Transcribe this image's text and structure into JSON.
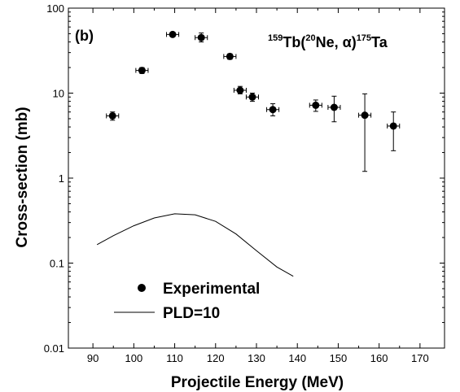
{
  "chart_data": {
    "type": "scatter",
    "panel_label": "(b)",
    "reaction": {
      "target_mass": "159",
      "target": "Tb(",
      "projectile_mass": "20",
      "projectile": "Ne, ",
      "ejectile": "α",
      "close": ")",
      "product_mass": "175",
      "product": "Ta"
    },
    "xlabel": "Projectile Energy (MeV)",
    "ylabel": "Cross-section (mb)",
    "xlim": [
      84,
      176
    ],
    "ylim": [
      0.01,
      100
    ],
    "yscale": "log",
    "xticks": [
      90,
      100,
      110,
      120,
      130,
      140,
      150,
      160,
      170
    ],
    "yticks": [
      {
        "value": 0.01,
        "label": "0.01"
      },
      {
        "value": 0.1,
        "label": "0.1"
      },
      {
        "value": 1,
        "label": "1"
      },
      {
        "value": 10,
        "label": "10"
      },
      {
        "value": 100,
        "label": "100"
      }
    ],
    "grid": false,
    "legend_position": "bottom-left",
    "series": [
      {
        "name": "Experimental",
        "kind": "points",
        "points": [
          {
            "x": 94.8,
            "y": 5.4,
            "xerr": 1.5,
            "ylo": 4.8,
            "yhi": 6.0
          },
          {
            "x": 102.0,
            "y": 18.5,
            "xerr": 1.5,
            "ylo": 17.0,
            "yhi": 20.0
          },
          {
            "x": 109.5,
            "y": 49.0,
            "xerr": 1.5,
            "ylo": 46.0,
            "yhi": 52.0
          },
          {
            "x": 116.5,
            "y": 45.0,
            "xerr": 1.5,
            "ylo": 40.0,
            "yhi": 51.0
          },
          {
            "x": 123.5,
            "y": 27.0,
            "xerr": 1.5,
            "ylo": 25.0,
            "yhi": 29.0
          },
          {
            "x": 126.0,
            "y": 10.8,
            "xerr": 1.5,
            "ylo": 9.8,
            "yhi": 12.0
          },
          {
            "x": 129.0,
            "y": 9.0,
            "xerr": 1.5,
            "ylo": 8.0,
            "yhi": 10.0
          },
          {
            "x": 134.0,
            "y": 6.4,
            "xerr": 1.5,
            "ylo": 5.4,
            "yhi": 7.5
          },
          {
            "x": 144.5,
            "y": 7.2,
            "xerr": 1.5,
            "ylo": 6.1,
            "yhi": 8.3
          },
          {
            "x": 149.0,
            "y": 6.8,
            "xerr": 1.5,
            "ylo": 4.6,
            "yhi": 9.2
          },
          {
            "x": 156.5,
            "y": 5.5,
            "xerr": 1.5,
            "ylo": 1.2,
            "yhi": 9.8
          },
          {
            "x": 163.5,
            "y": 4.1,
            "xerr": 1.5,
            "ylo": 2.1,
            "yhi": 6.0
          }
        ]
      },
      {
        "name": "PLD=10",
        "kind": "line",
        "x": [
          91,
          95,
          100,
          105,
          110,
          115,
          120,
          125,
          130,
          135,
          139
        ],
        "y": [
          0.165,
          0.21,
          0.275,
          0.34,
          0.38,
          0.37,
          0.31,
          0.22,
          0.14,
          0.09,
          0.07
        ]
      }
    ]
  },
  "colors": {
    "ink": "#000000",
    "background": "#ffffff"
  }
}
